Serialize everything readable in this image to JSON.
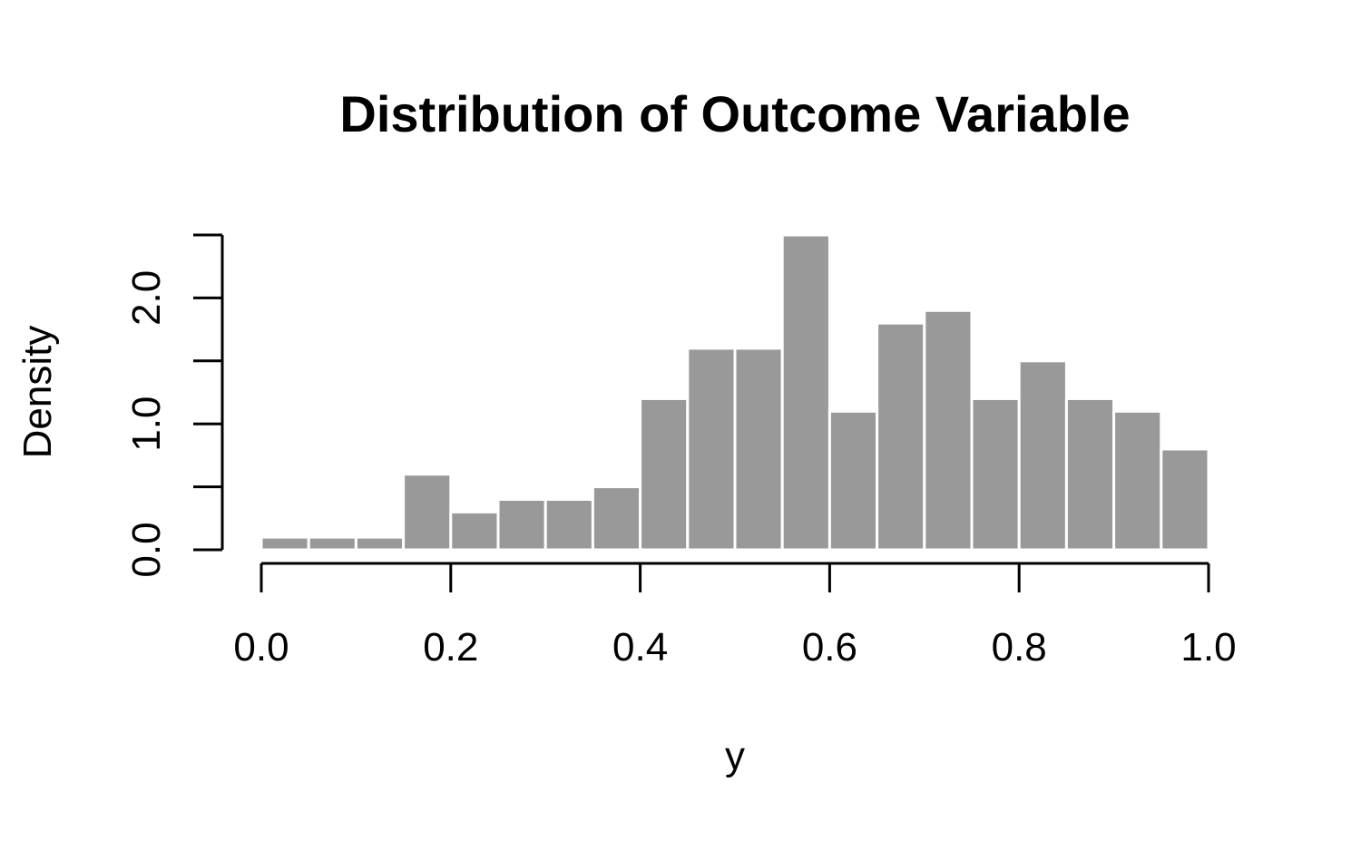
{
  "chart_data": {
    "type": "bar",
    "title": "Distribution of Outcome Variable",
    "xlabel": "y",
    "ylabel": "Density",
    "bin_edges": [
      0.0,
      0.05,
      0.1,
      0.15,
      0.2,
      0.25,
      0.3,
      0.35,
      0.4,
      0.45,
      0.5,
      0.55,
      0.6,
      0.65,
      0.7,
      0.75,
      0.8,
      0.85,
      0.9,
      0.95,
      1.0
    ],
    "values": [
      0.1,
      0.1,
      0.1,
      0.6,
      0.3,
      0.4,
      0.4,
      0.5,
      1.2,
      1.6,
      1.6,
      2.5,
      1.1,
      1.8,
      1.9,
      1.2,
      1.5,
      1.2,
      1.1,
      0.8
    ],
    "x_ticks": [
      0.0,
      0.2,
      0.4,
      0.6,
      0.8,
      1.0
    ],
    "x_tick_labels": [
      "0.0",
      "0.2",
      "0.4",
      "0.6",
      "0.8",
      "1.0"
    ],
    "y_ticks": [
      0.0,
      0.5,
      1.0,
      1.5,
      2.0,
      2.5
    ],
    "y_tick_labels": [
      "0.0",
      "",
      "1.0",
      "",
      "2.0",
      ""
    ],
    "xlim": [
      0.0,
      1.0
    ],
    "ylim": [
      0.0,
      2.5
    ],
    "bar_color": "#999999",
    "bar_border_color": "#ffffff",
    "grid": false,
    "legend": "none"
  }
}
